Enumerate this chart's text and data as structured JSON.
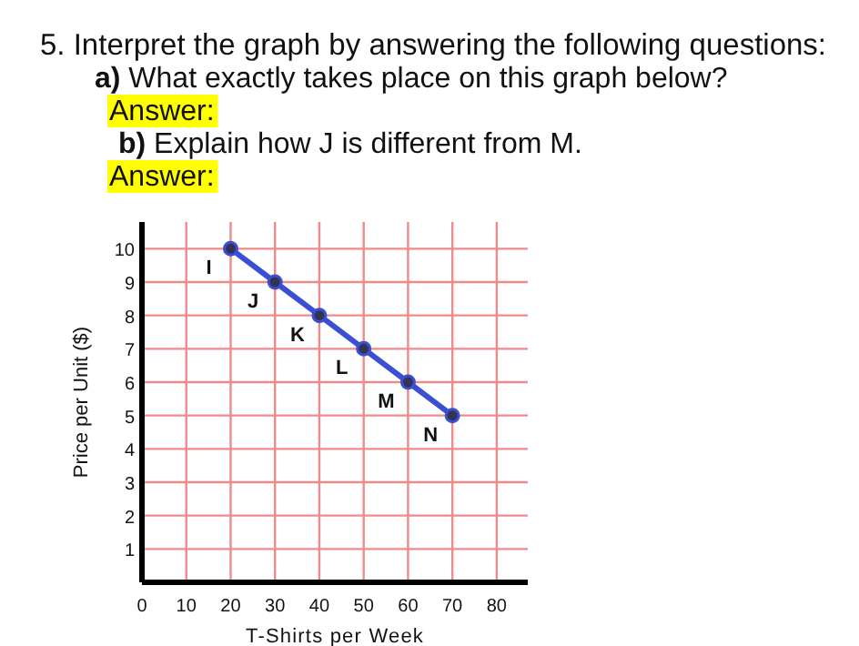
{
  "chart_data": {
    "type": "line",
    "title": "5. Interpret the graph by answering the following questions:",
    "annotations": [
      "a) What exactly takes place on this graph below?",
      "Answer:",
      "b) Explain how J is different from M.",
      "Answer:",
      {
        "text": "I",
        "x": 20,
        "y": 10
      },
      {
        "text": "J",
        "x": 30,
        "y": 9
      },
      {
        "text": "K",
        "x": 40,
        "y": 8
      },
      {
        "text": "L",
        "x": 50,
        "y": 7
      },
      {
        "text": "M",
        "x": 60,
        "y": 6
      },
      {
        "text": "N",
        "x": 70,
        "y": 5
      }
    ],
    "xlabel": "T-Shirts per Week",
    "ylabel": "Price per Unit ($)",
    "x": [
      20,
      30,
      40,
      50,
      60,
      70
    ],
    "series": [
      {
        "color": "#3b4fd6",
        "values": [
          10,
          9,
          8,
          7,
          6,
          5
        ]
      }
    ],
    "xlim": [
      0,
      87
    ],
    "ylim": [
      0,
      10.8
    ],
    "xticks": [
      0,
      10,
      20,
      30,
      40,
      50,
      60,
      70,
      80
    ],
    "yticks": [
      1,
      2,
      3,
      4,
      5,
      6,
      7,
      8,
      9,
      10
    ],
    "grid": true,
    "marker": "circle",
    "line_style": "solid"
  }
}
